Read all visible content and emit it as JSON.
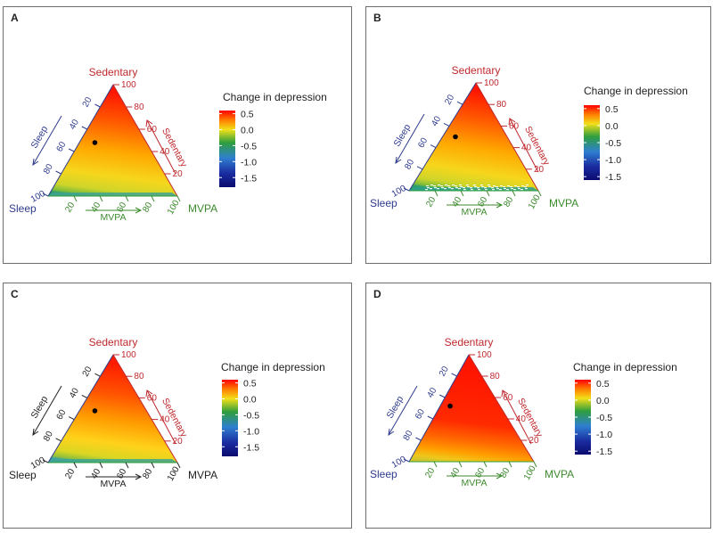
{
  "colors": {
    "sedentary": "#c0282d",
    "sleep": "#2e3b8e",
    "mvpa": "#3c8a2e",
    "black": "#222222",
    "scale": [
      "#14148c",
      "#2f7fd0",
      "#2e9e3e",
      "#f2e01a",
      "#ff2000"
    ]
  },
  "chart_data": [
    {
      "panel": "A",
      "type": "ternary-heatmap",
      "vertex_labels": {
        "top": "Sedentary",
        "left": "Sleep",
        "right": "MVPA"
      },
      "sleep_color": "#2e3b8e",
      "mvpa_color": "#3c8a2e",
      "axis_titles": {
        "sleep": "Sleep",
        "sedentary": "Sedentary",
        "mvpa": "MVPA"
      },
      "left_ticks": [
        "20",
        "40",
        "60",
        "80",
        "100"
      ],
      "right_ticks": [
        "100",
        "80",
        "60",
        "40",
        "20"
      ],
      "bottom_ticks": [
        "20",
        "40",
        "60",
        "80",
        "100"
      ],
      "bottom_left_label": "100",
      "point": {
        "sedentary": 48,
        "sleep": 40,
        "mvpa": 12
      },
      "colorbar": {
        "title": "Change in depression",
        "min": -1.8,
        "max": 0.6,
        "ticks": [
          "0.5",
          "0.0",
          "-0.5",
          "-1.0",
          "-1.5"
        ],
        "tick_values": [
          0.5,
          0.0,
          -0.5,
          -1.0,
          -1.5
        ]
      },
      "surface": "red at high sedentary, yellow mid, green near the sleep–MVPA edge"
    },
    {
      "panel": "B",
      "type": "ternary-heatmap",
      "vertex_labels": {
        "top": "Sedentary",
        "left": "Sleep",
        "right": "MVPA"
      },
      "sleep_color": "#2e3b8e",
      "mvpa_color": "#3c8a2e",
      "axis_titles": {
        "sleep": "Sleep",
        "sedentary": "Sedentary",
        "mvpa": "MVPA"
      },
      "left_ticks": [
        "20",
        "40",
        "60",
        "80",
        "100"
      ],
      "right_ticks": [
        "100",
        "80",
        "60",
        "40",
        "20"
      ],
      "bottom_ticks": [
        "20",
        "40",
        "60",
        "80",
        "100"
      ],
      "bottom_left_label": "100",
      "point": {
        "sedentary": 50,
        "sleep": 40,
        "mvpa": 10
      },
      "colorbar": {
        "title": "Change in depression",
        "min": -1.6,
        "max": 0.6,
        "ticks": [
          "0.5",
          "0.0",
          "-0.5",
          "-1.0",
          "-1.5"
        ],
        "tick_values": [
          0.5,
          0.0,
          -0.5,
          -1.0,
          -1.5
        ]
      },
      "surface": "red at high sedentary, yellow mid, green/blue near the sleep–MVPA edge"
    },
    {
      "panel": "C",
      "type": "ternary-heatmap",
      "vertex_labels": {
        "top": "Sedentary",
        "left": "Sleep",
        "right": "MVPA"
      },
      "sleep_color": "#222222",
      "mvpa_color": "#222222",
      "axis_titles": {
        "sleep": "Sleep",
        "sedentary": "Sedentary",
        "mvpa": "MVPA"
      },
      "left_ticks": [
        "20",
        "40",
        "60",
        "80",
        "100"
      ],
      "right_ticks": [
        "100",
        "80",
        "60",
        "40",
        "20"
      ],
      "bottom_ticks": [
        "20",
        "40",
        "60",
        "80",
        "100"
      ],
      "bottom_left_label": "100",
      "point": {
        "sedentary": 48,
        "sleep": 40,
        "mvpa": 12
      },
      "colorbar": {
        "title": "Change in depression",
        "min": -1.8,
        "max": 0.6,
        "ticks": [
          "0.5",
          "0.0",
          "-0.5",
          "-1.0",
          "-1.5"
        ],
        "tick_values": [
          0.5,
          0.0,
          -0.5,
          -1.0,
          -1.5
        ]
      },
      "surface": "red at high sedentary, orange/yellow mid, green near the sleep–MVPA edge"
    },
    {
      "panel": "D",
      "type": "ternary-heatmap",
      "vertex_labels": {
        "top": "Sedentary",
        "left": "Sleep",
        "right": "MVPA"
      },
      "sleep_color": "#2e3b8e",
      "mvpa_color": "#3c8a2e",
      "axis_titles": {
        "sleep": "Sleep",
        "sedentary": "Sedentary",
        "mvpa": "MVPA"
      },
      "left_ticks": [
        "20",
        "40",
        "60",
        "80",
        "100"
      ],
      "right_ticks": [
        "100",
        "80",
        "60",
        "40",
        "20"
      ],
      "bottom_ticks": [
        "20",
        "40",
        "60",
        "80",
        "100"
      ],
      "bottom_left_label": "100",
      "point": {
        "sedentary": 52,
        "sleep": 40,
        "mvpa": 8
      },
      "colorbar": {
        "title": "Change in depression",
        "min": -1.6,
        "max": 0.6,
        "ticks": [
          "0.5",
          "0.0",
          "-0.5",
          "-1.0",
          "-1.5"
        ],
        "tick_values": [
          0.5,
          0.0,
          -0.5,
          -1.0,
          -1.5
        ]
      },
      "surface": "red over most of the triangle, orange/yellow toward the sleep corner"
    }
  ]
}
